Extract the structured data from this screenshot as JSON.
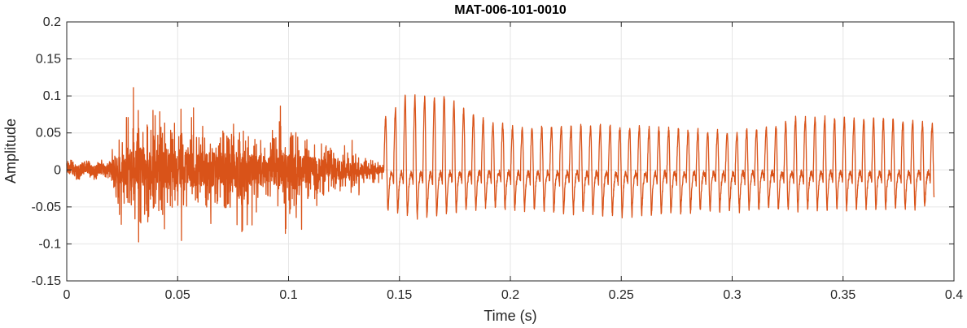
{
  "chart_data": {
    "type": "line",
    "title": "MAT-006-101-0010",
    "xlabel": "Time (s)",
    "ylabel": "Amplitude",
    "xlim": [
      0,
      0.4
    ],
    "ylim": [
      -0.15,
      0.2
    ],
    "grid": true,
    "x_ticks": [
      0,
      0.05,
      0.1,
      0.15,
      0.2,
      0.25,
      0.3,
      0.35,
      0.4
    ],
    "x_tick_labels": [
      "0",
      "0.05",
      "0.1",
      "0.15",
      "0.2",
      "0.25",
      "0.3",
      "0.35",
      "0.4"
    ],
    "y_ticks": [
      -0.15,
      -0.1,
      -0.05,
      0,
      0.05,
      0.1,
      0.15,
      0.2
    ],
    "y_tick_labels": [
      "-0.15",
      "-0.1",
      "-0.05",
      "0",
      "0.05",
      "0.1",
      "0.15",
      "0.2"
    ],
    "line_color": "#D95319",
    "series": [
      {
        "x_start": 0,
        "x_end": 0.391,
        "segments": [
          {
            "x_start": 0,
            "x_end": 0.018,
            "kind": "noise",
            "envelope": [
              0.01,
              0.015
            ]
          },
          {
            "x_start": 0.018,
            "x_end": 0.143,
            "kind": "noise",
            "envelope_points": [
              [
                0.018,
                0.02
              ],
              [
                0.022,
                0.07
              ],
              [
                0.028,
                0.09
              ],
              [
                0.032,
                0.15
              ],
              [
                0.035,
                0.12
              ],
              [
                0.045,
                0.1
              ],
              [
                0.06,
                0.09
              ],
              [
                0.075,
                0.1
              ],
              [
                0.09,
                0.07
              ],
              [
                0.1,
                0.1
              ],
              [
                0.11,
                0.07
              ],
              [
                0.12,
                0.06
              ],
              [
                0.13,
                0.04
              ],
              [
                0.14,
                0.02
              ],
              [
                0.143,
                0.01
              ]
            ]
          },
          {
            "x_start": 0.143,
            "x_end": 0.391,
            "kind": "periodic",
            "period": 0.0044,
            "peak_points": [
              [
                0.145,
                0.07
              ],
              [
                0.152,
                0.098
              ],
              [
                0.17,
                0.098
              ],
              [
                0.18,
                0.08
              ],
              [
                0.19,
                0.065
              ],
              [
                0.2,
                0.058
              ],
              [
                0.25,
                0.058
              ],
              [
                0.3,
                0.05
              ],
              [
                0.32,
                0.06
              ],
              [
                0.33,
                0.07
              ],
              [
                0.375,
                0.068
              ],
              [
                0.391,
                0.06
              ]
            ],
            "trough_points": [
              [
                0.145,
                -0.055
              ],
              [
                0.16,
                -0.065
              ],
              [
                0.19,
                -0.05
              ],
              [
                0.25,
                -0.062
              ],
              [
                0.3,
                -0.055
              ],
              [
                0.391,
                -0.05
              ]
            ]
          }
        ]
      }
    ]
  }
}
